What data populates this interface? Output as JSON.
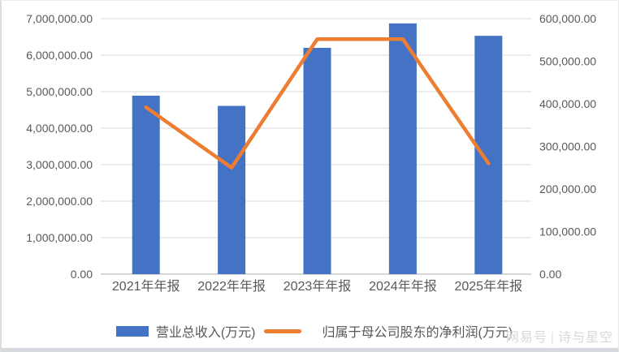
{
  "chart_data": {
    "type": "bar",
    "subtype": "combo-bar-line",
    "title": "",
    "categories": [
      "2021年年报",
      "2022年年报",
      "2023年年报",
      "2024年年报",
      "2025年年报"
    ],
    "series": [
      {
        "name": "营业总收入(万元)",
        "chart_type": "bar",
        "axis": "left",
        "color": "#4472C4",
        "values": [
          4890000,
          4610000,
          6200000,
          6870000,
          6530000
        ]
      },
      {
        "name": "归属于母公司股东的净利润(万元)",
        "chart_type": "line",
        "axis": "right",
        "color": "#ED7D31",
        "values": [
          392000,
          250000,
          552000,
          552000,
          260000
        ]
      }
    ],
    "left_axis": {
      "min": 0,
      "max": 7000000,
      "step": 1000000,
      "tick_format": "#,##0.00"
    },
    "right_axis": {
      "min": 0,
      "max": 600000,
      "step": 100000,
      "tick_format": "#,##0.00"
    },
    "grid": "horizontal-major",
    "legend_position": "bottom"
  },
  "colors": {
    "bar": "#4472C4",
    "line": "#ED7D31",
    "gridline": "#D9D9D9",
    "axis_line": "#BFBFBF",
    "tick_text": "#595959"
  },
  "watermark": {
    "source": "网易号",
    "separator": "|",
    "name": "诗与星空"
  }
}
